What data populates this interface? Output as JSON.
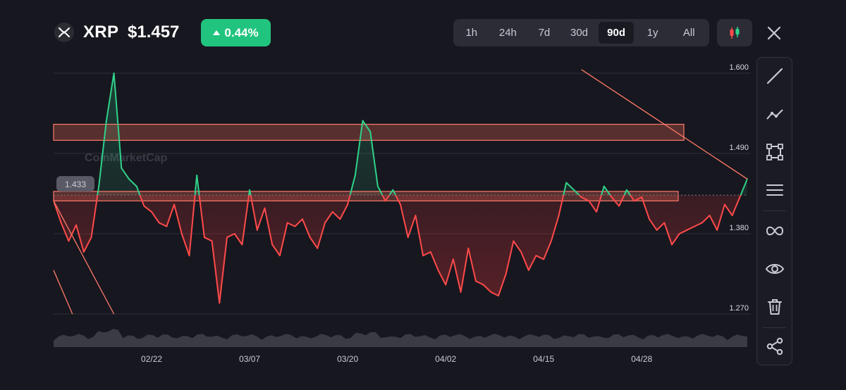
{
  "header": {
    "symbol": "XRP",
    "price": "$1.457",
    "change": "0.44%",
    "change_color": "#21c47e",
    "logo_icon": "xrp-logo-icon"
  },
  "range_tabs": [
    {
      "label": "1h",
      "active": false
    },
    {
      "label": "24h",
      "active": false
    },
    {
      "label": "7d",
      "active": false
    },
    {
      "label": "30d",
      "active": false
    },
    {
      "label": "90d",
      "active": true
    },
    {
      "label": "1y",
      "active": false
    },
    {
      "label": "All",
      "active": false
    }
  ],
  "toolbar": {
    "tools": [
      "line-tool-icon",
      "trendline-icon",
      "rectangle-icon",
      "fib-levels-icon",
      "infinite-line-icon",
      "visibility-eye-icon",
      "trash-icon",
      "share-icon"
    ]
  },
  "watermark": "CoinMarketCap",
  "chart_data": {
    "type": "line",
    "title": "",
    "xlabel": "",
    "ylabel": "",
    "ylim": [
      1.25,
      1.62
    ],
    "y_ticks": [
      1.6,
      1.49,
      1.38,
      1.27
    ],
    "y_tick_labels": [
      "1.600",
      "1.490",
      "1.380",
      "1.270"
    ],
    "x_tick_labels": [
      "02/22",
      "03/07",
      "03/20",
      "04/02",
      "04/15",
      "04/28"
    ],
    "x_tick_days": [
      13,
      26,
      39,
      52,
      65,
      78
    ],
    "reference_price": 1.433,
    "reference_price_label": "1.433",
    "above_color": "#2fd28a",
    "below_color": "#ff4a4a",
    "grid": true,
    "series": [
      {
        "x": [
          0,
          1,
          2,
          3,
          4,
          5,
          6,
          7,
          8,
          9,
          10,
          11,
          12,
          13,
          14,
          15,
          16,
          17,
          18,
          19,
          20,
          21,
          22,
          23,
          24,
          25,
          26,
          27,
          28,
          29,
          30,
          31,
          32,
          33,
          34,
          35,
          36,
          37,
          38,
          39,
          40,
          41,
          42,
          43,
          44,
          45,
          46,
          47,
          48,
          49,
          50,
          51,
          52,
          53,
          54,
          55,
          56,
          57,
          58,
          59,
          60,
          61,
          62,
          63,
          64,
          65,
          66,
          67,
          68,
          69,
          70,
          71,
          72,
          73,
          74,
          75,
          76,
          77,
          78,
          79,
          80,
          81,
          82,
          83,
          84,
          85,
          86,
          87,
          88,
          89,
          90,
          91,
          92
        ],
        "y": [
          1.425,
          1.395,
          1.37,
          1.392,
          1.355,
          1.375,
          1.445,
          1.535,
          1.6,
          1.47,
          1.455,
          1.445,
          1.418,
          1.41,
          1.395,
          1.39,
          1.42,
          1.38,
          1.35,
          1.46,
          1.375,
          1.37,
          1.285,
          1.375,
          1.38,
          1.365,
          1.44,
          1.385,
          1.415,
          1.365,
          1.35,
          1.395,
          1.39,
          1.4,
          1.375,
          1.36,
          1.395,
          1.41,
          1.4,
          1.42,
          1.46,
          1.535,
          1.52,
          1.445,
          1.425,
          1.44,
          1.42,
          1.375,
          1.405,
          1.35,
          1.355,
          1.33,
          1.31,
          1.345,
          1.3,
          1.36,
          1.315,
          1.31,
          1.3,
          1.295,
          1.325,
          1.37,
          1.355,
          1.33,
          1.35,
          1.345,
          1.37,
          1.405,
          1.45,
          1.44,
          1.43,
          1.425,
          1.41,
          1.445,
          1.43,
          1.418,
          1.44,
          1.425,
          1.43,
          1.4,
          1.385,
          1.395,
          1.365,
          1.38,
          1.385,
          1.39,
          1.395,
          1.405,
          1.385,
          1.42,
          1.405,
          1.43,
          1.455
        ]
      }
    ],
    "zones": [
      {
        "y_low": 1.508,
        "y_high": 1.53
      },
      {
        "y_low": 1.425,
        "y_high": 1.438
      }
    ],
    "trendlines": [
      {
        "from": [
          70,
          1.605
        ],
        "to": [
          92,
          1.455
        ]
      },
      {
        "from": [
          0,
          1.425
        ],
        "to": [
          8,
          1.27
        ]
      },
      {
        "from": [
          0,
          1.33
        ],
        "to": [
          2.5,
          1.27
        ]
      }
    ]
  }
}
